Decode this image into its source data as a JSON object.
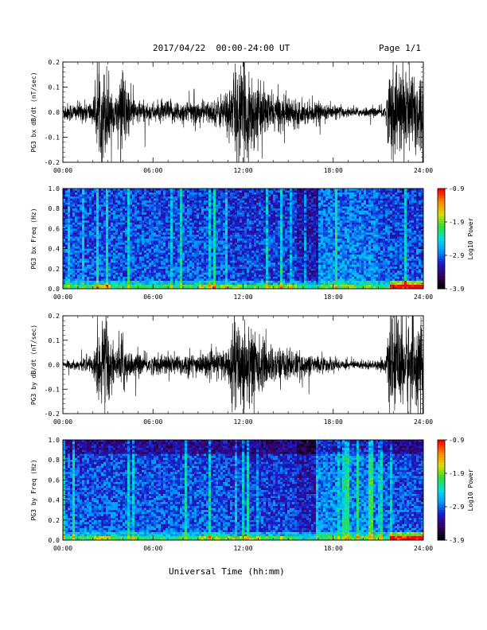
{
  "header": {
    "date_range": "2017/04/22  00:00-24:00 UT",
    "page": "Page 1/1"
  },
  "footer": {
    "x_axis_title": "Universal Time (hh:mm)"
  },
  "colors": {
    "trace": "#000000",
    "spectrogram_palette": [
      "#000000",
      "#3a0066",
      "#1a1acc",
      "#0099ff",
      "#00e0e0",
      "#33dd33",
      "#dddd00",
      "#ff8800",
      "#ff0000"
    ]
  },
  "chart_data": [
    {
      "type": "line",
      "panel": "bx-waveform",
      "ylabel": "PG3 bx dB/dt (nT/sec)",
      "x_ticks": [
        "00:00",
        "06:00",
        "12:00",
        "18:00",
        "24:00"
      ],
      "xlim_hours": [
        0,
        24
      ],
      "ylim": [
        -0.2,
        0.2
      ],
      "y_ticks": [
        "-0.2",
        "-0.1",
        "0.0",
        "0.1",
        "0.2"
      ],
      "activity_profile": {
        "hours": [
          0,
          1,
          2,
          2.5,
          3,
          3.5,
          4,
          4.5,
          5,
          6,
          7,
          8,
          9,
          10,
          11,
          11.5,
          12,
          12.5,
          13,
          14,
          15,
          16,
          17,
          18,
          19,
          20,
          21,
          21.5,
          21.8,
          22,
          23,
          24
        ],
        "amplitude": [
          0.04,
          0.04,
          0.05,
          0.2,
          0.2,
          0.05,
          0.2,
          0.08,
          0.05,
          0.04,
          0.05,
          0.05,
          0.05,
          0.05,
          0.1,
          0.2,
          0.2,
          0.2,
          0.12,
          0.08,
          0.07,
          0.05,
          0.04,
          0.03,
          0.02,
          0.02,
          0.02,
          0.04,
          0.2,
          0.2,
          0.2,
          0.2
        ]
      }
    },
    {
      "type": "heatmap",
      "panel": "bx-spectrogram",
      "ylabel": "PG3 bx Freq (Hz)",
      "x_ticks": [
        "00:00",
        "06:00",
        "12:00",
        "18:00",
        "24:00"
      ],
      "xlim_hours": [
        0,
        24
      ],
      "ylim": [
        0.0,
        1.0
      ],
      "y_ticks": [
        "0.0",
        "0.2",
        "0.4",
        "0.6",
        "0.8",
        "1.0"
      ],
      "colorbar": {
        "label": "Log10 Power",
        "range": [
          -3.9,
          -0.9
        ],
        "ticks": [
          "-0.9",
          "-1.9",
          "-2.9",
          "-3.9"
        ]
      }
    },
    {
      "type": "line",
      "panel": "by-waveform",
      "ylabel": "PG3 by dB/dt (nT/sec)",
      "x_ticks": [
        "00:00",
        "06:00",
        "12:00",
        "18:00",
        "24:00"
      ],
      "xlim_hours": [
        0,
        24
      ],
      "ylim": [
        -0.2,
        0.2
      ],
      "y_ticks": [
        "-0.2",
        "-0.1",
        "0.0",
        "0.1",
        "0.2"
      ],
      "activity_profile": {
        "hours": [
          0,
          1,
          2,
          2.5,
          3,
          3.5,
          4,
          4.5,
          5,
          6,
          7,
          8,
          9,
          10,
          11,
          11.5,
          12,
          12.5,
          13,
          14,
          15,
          16,
          17,
          18,
          19,
          20,
          21,
          21.5,
          21.8,
          22,
          23,
          24
        ],
        "amplitude": [
          0.02,
          0.02,
          0.04,
          0.2,
          0.2,
          0.05,
          0.15,
          0.05,
          0.05,
          0.04,
          0.05,
          0.05,
          0.05,
          0.05,
          0.08,
          0.2,
          0.2,
          0.2,
          0.12,
          0.08,
          0.07,
          0.05,
          0.04,
          0.03,
          0.02,
          0.02,
          0.02,
          0.04,
          0.2,
          0.2,
          0.2,
          0.2
        ]
      }
    },
    {
      "type": "heatmap",
      "panel": "by-spectrogram",
      "ylabel": "PG3 by Freq (Hz)",
      "x_ticks": [
        "00:00",
        "06:00",
        "12:00",
        "18:00",
        "24:00"
      ],
      "xlim_hours": [
        0,
        24
      ],
      "ylim": [
        0.0,
        1.0
      ],
      "y_ticks": [
        "0.0",
        "0.2",
        "0.4",
        "0.6",
        "0.8",
        "1.0"
      ],
      "colorbar": {
        "label": "Log10 Power",
        "range": [
          -3.9,
          -0.9
        ],
        "ticks": [
          "-0.9",
          "-1.9",
          "-2.9",
          "-3.9"
        ]
      }
    }
  ]
}
